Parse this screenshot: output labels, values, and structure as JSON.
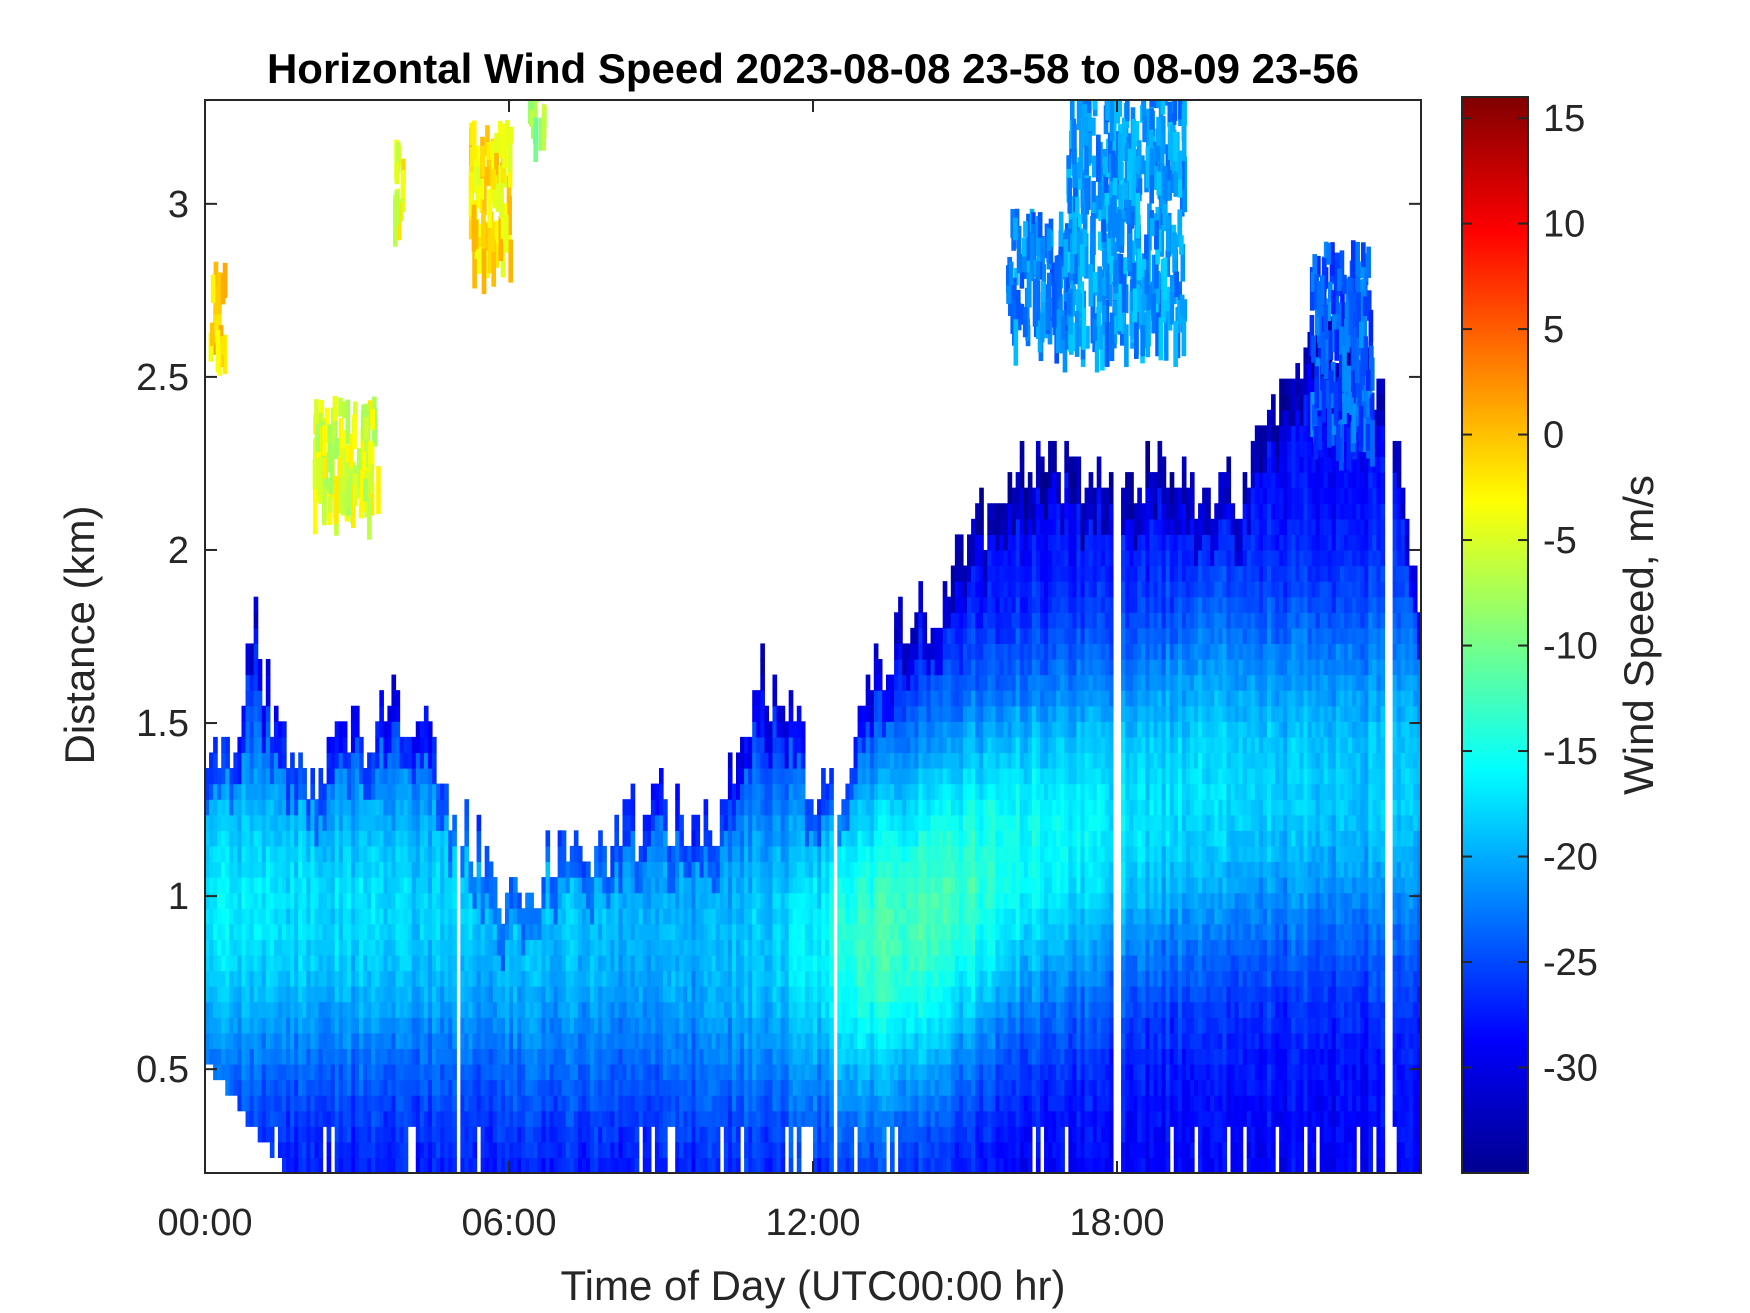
{
  "chart_data": {
    "type": "heatmap",
    "title": "Horizontal Wind Speed 2023-08-08 23-58 to 08-09 23-56",
    "xlabel": "Time of Day (UTC00:00 hr)",
    "ylabel": "Distance (km)",
    "x_unit": "hours",
    "xlim": [
      0,
      24
    ],
    "ylim": [
      0.2,
      3.3
    ],
    "x_ticks": [
      {
        "value": 0,
        "label": "00:00"
      },
      {
        "value": 6,
        "label": "06:00"
      },
      {
        "value": 12,
        "label": "12:00"
      },
      {
        "value": 18,
        "label": "18:00"
      }
    ],
    "y_ticks": [
      {
        "value": 0.5,
        "label": "0.5"
      },
      {
        "value": 1,
        "label": "1"
      },
      {
        "value": 1.5,
        "label": "1.5"
      },
      {
        "value": 2,
        "label": "2"
      },
      {
        "value": 2.5,
        "label": "2.5"
      },
      {
        "value": 3,
        "label": "3"
      }
    ],
    "colorbar": {
      "label": "Wind Speed, m/s",
      "colormap": "jet",
      "range": [
        -35,
        16
      ],
      "ticks": [
        {
          "value": 15,
          "label": "15"
        },
        {
          "value": 10,
          "label": "10"
        },
        {
          "value": 5,
          "label": "5"
        },
        {
          "value": 0,
          "label": "0"
        },
        {
          "value": -5,
          "label": "-5"
        },
        {
          "value": -10,
          "label": "-10"
        },
        {
          "value": -15,
          "label": "-15"
        },
        {
          "value": -20,
          "label": "-20"
        },
        {
          "value": -25,
          "label": "-25"
        },
        {
          "value": -30,
          "label": "-30"
        }
      ]
    },
    "data_top_km": {
      "hours": [
        0,
        0.5,
        1,
        1.5,
        2,
        2.5,
        3,
        3.5,
        4,
        4.5,
        5,
        5.5,
        6,
        6.5,
        7,
        7.5,
        8,
        8.5,
        9,
        9.5,
        10,
        10.5,
        11,
        11.5,
        12,
        12.5,
        13,
        13.5,
        14,
        14.5,
        15,
        15.5,
        16,
        16.5,
        17,
        17.5,
        18,
        18.5,
        19,
        19.5,
        20,
        20.5,
        21,
        21.5,
        22,
        22.5,
        23,
        23.5,
        24
      ],
      "top": [
        1.3,
        1.4,
        1.75,
        1.4,
        1.35,
        1.35,
        1.45,
        1.5,
        1.5,
        1.4,
        1.15,
        1.1,
        0.95,
        1.05,
        1.1,
        1.1,
        1.15,
        1.2,
        1.25,
        1.2,
        1.15,
        1.35,
        1.6,
        1.55,
        1.3,
        1.3,
        1.5,
        1.7,
        1.8,
        1.85,
        1.95,
        2.1,
        2.2,
        2.2,
        2.2,
        2.2,
        2.25,
        2.2,
        2.2,
        2.15,
        2.15,
        2.15,
        2.3,
        2.45,
        2.55,
        2.6,
        2.5,
        2.35,
        1.8
      ]
    },
    "data_gaps_hours": [
      [
        4.95,
        5.05
      ],
      [
        12.4,
        12.5
      ],
      [
        17.95,
        18.05
      ],
      [
        23.3,
        23.45
      ]
    ],
    "core": {
      "hours": [
        0,
        2,
        4,
        5,
        6,
        8,
        10,
        12,
        13,
        14,
        15,
        16,
        18,
        20,
        22,
        24
      ],
      "speed": [
        -17,
        -17.5,
        -18,
        -18.5,
        -19,
        -19.5,
        -20,
        -17,
        -13,
        -12.5,
        -13,
        -15,
        -17,
        -18,
        -18.5,
        -19
      ],
      "height_km": [
        0.95,
        0.95,
        0.95,
        0.95,
        0.9,
        0.9,
        0.85,
        0.85,
        0.85,
        0.9,
        1.0,
        1.1,
        1.2,
        1.3,
        1.3,
        1.3
      ]
    },
    "upper_patches": [
      {
        "t0": 15.8,
        "t1": 17.0,
        "z0": 2.6,
        "z1": 2.95,
        "speed": -22
      },
      {
        "t0": 17.0,
        "t1": 19.3,
        "z0": 2.6,
        "z1": 3.3,
        "speed": -21
      },
      {
        "t0": 21.8,
        "t1": 23.0,
        "z0": 2.3,
        "z1": 2.85,
        "speed": -24
      },
      {
        "t0": 5.2,
        "t1": 6.0,
        "z0": 2.8,
        "z1": 3.2,
        "speed": -2
      },
      {
        "t0": 0.05,
        "t1": 0.35,
        "z0": 2.55,
        "z1": 2.8,
        "speed": -1
      },
      {
        "t0": 2.1,
        "t1": 3.4,
        "z0": 2.1,
        "z1": 2.4,
        "speed": -5
      },
      {
        "t0": 3.7,
        "t1": 3.9,
        "z0": 2.95,
        "z1": 3.15,
        "speed": -4
      },
      {
        "t0": 6.35,
        "t1": 6.7,
        "z0": 3.2,
        "z1": 3.3,
        "speed": -8
      }
    ]
  }
}
